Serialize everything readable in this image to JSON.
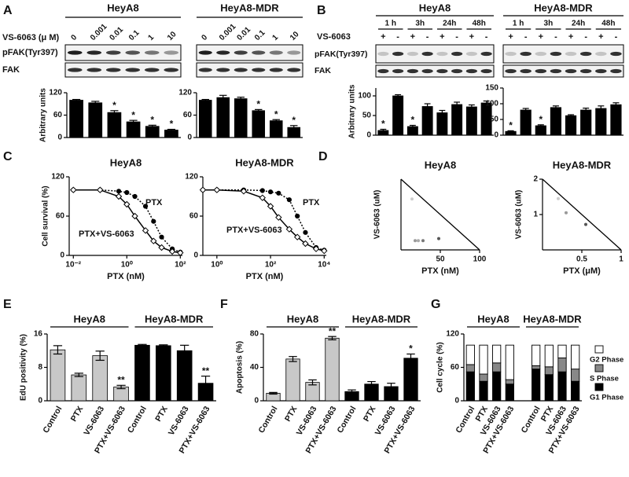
{
  "panel_labels": [
    "A",
    "B",
    "C",
    "D",
    "E",
    "F",
    "G"
  ],
  "blots": {
    "A": {
      "treatment_label": "VS-6063 (μ M)",
      "rows": [
        "pFAK(Tyr397)",
        "FAK"
      ],
      "groups": [
        {
          "title": "HeyA8",
          "doses": [
            "0",
            "0.001",
            "0.01",
            "0.1",
            "1",
            "10"
          ]
        },
        {
          "title": "HeyA8-MDR",
          "doses": [
            "0",
            "0.001",
            "0.01",
            "0.1",
            "1",
            "10"
          ]
        }
      ]
    },
    "B": {
      "treatment_label": "VS-6063",
      "rows": [
        "pFAK(Tyr397)",
        "FAK"
      ],
      "groups": [
        {
          "title": "HeyA8",
          "times": [
            "1 h",
            "3h",
            "24h",
            "48h"
          ],
          "signs": [
            "+",
            "-",
            "+",
            "-",
            "+",
            "-",
            "+",
            "-"
          ]
        },
        {
          "title": "HeyA8-MDR",
          "times": [
            "1 h",
            "3h",
            "24h",
            "48h"
          ],
          "signs": [
            "+",
            "-",
            "+",
            "-",
            "+",
            "-",
            "+",
            "-"
          ]
        }
      ]
    }
  },
  "chart_data": [
    {
      "type": "bar",
      "ylabel": "Arbitrary units",
      "values": [
        100,
        93,
        67,
        42,
        30,
        20
      ],
      "errors": [
        2,
        4,
        5,
        4,
        3,
        2
      ],
      "annotations": [
        null,
        null,
        "*",
        "*",
        "*",
        "*"
      ],
      "color": "#000000",
      "ylim": [
        0,
        120
      ],
      "yticks": [
        0,
        60,
        120
      ]
    },
    {
      "type": "bar",
      "values": [
        100,
        107,
        104,
        72,
        45,
        27
      ],
      "errors": [
        2,
        6,
        4,
        3,
        3,
        5
      ],
      "annotations": [
        null,
        null,
        null,
        "*",
        "*",
        "*"
      ],
      "color": "#000000",
      "ylim": [
        0,
        120
      ],
      "yticks": [
        0,
        60,
        120
      ]
    },
    {
      "type": "bar",
      "ylabel": "Arbitrary units",
      "values": [
        12,
        100,
        22,
        73,
        57,
        78,
        72,
        82
      ],
      "errors": [
        3,
        3,
        3,
        7,
        6,
        6,
        5,
        5
      ],
      "annotations": [
        "*",
        null,
        "*",
        null,
        null,
        null,
        null,
        null
      ],
      "color": "#000000",
      "ylim": [
        0,
        120
      ],
      "yticks": [
        0,
        50,
        100
      ]
    },
    {
      "type": "bar",
      "values": [
        12,
        80,
        30,
        88,
        62,
        80,
        85,
        97
      ],
      "errors": [
        2,
        5,
        3,
        5,
        3,
        6,
        8,
        6
      ],
      "annotations": [
        "*",
        null,
        "*",
        null,
        null,
        null,
        null,
        null
      ],
      "color": "#000000",
      "ylim": [
        0,
        150
      ],
      "yticks": [
        0,
        50,
        100,
        150
      ]
    },
    {
      "type": "line",
      "title": "HeyA8",
      "xlabel": "PTX (nM)",
      "ylabel": "Cell survival (%)",
      "xlog": true,
      "xlim": [
        0.007,
        120
      ],
      "xticks": [
        {
          "value": 0.01,
          "label": "10⁻²"
        },
        {
          "value": 1,
          "label": "10⁰"
        },
        {
          "value": 100,
          "label": "10²"
        }
      ],
      "ylim": [
        0,
        120
      ],
      "yticks": [
        0,
        60,
        120
      ],
      "series": [
        {
          "name": "PTX",
          "color": "#000000",
          "marker": "circle",
          "line_style": "dotted",
          "x": [
            0.01,
            0.1,
            0.5,
            1,
            2,
            5,
            10,
            20,
            50,
            100
          ],
          "values": [
            100,
            100,
            98,
            96,
            90,
            75,
            52,
            28,
            10,
            5
          ]
        },
        {
          "name": "PTX+VS-6063",
          "color": "#000000",
          "marker": "diamond",
          "line_style": "solid",
          "x": [
            0.01,
            0.1,
            0.5,
            1,
            2,
            5,
            10,
            20,
            50,
            100
          ],
          "values": [
            100,
            100,
            90,
            78,
            60,
            38,
            22,
            12,
            6,
            4
          ]
        }
      ]
    },
    {
      "type": "line",
      "title": "HeyA8-MDR",
      "xlabel": "PTX (nM)",
      "xlog": true,
      "xlim": [
        0.3,
        12000
      ],
      "xticks": [
        {
          "value": 1,
          "label": "10⁰"
        },
        {
          "value": 100,
          "label": "10²"
        },
        {
          "value": 10000,
          "label": "10⁴"
        }
      ],
      "ylim": [
        0,
        120
      ],
      "yticks": [
        0,
        60,
        120
      ],
      "series": [
        {
          "name": "PTX",
          "color": "#000000",
          "marker": "circle",
          "line_style": "dotted",
          "x": [
            0.3,
            1,
            10,
            50,
            100,
            200,
            500,
            1000,
            2000,
            5000,
            10000
          ],
          "values": [
            100,
            100,
            100,
            99,
            97,
            95,
            85,
            60,
            35,
            12,
            8
          ]
        },
        {
          "name": "PTX+VS-6063",
          "color": "#000000",
          "marker": "diamond",
          "line_style": "solid",
          "x": [
            0.3,
            1,
            10,
            50,
            100,
            200,
            500,
            1000,
            2000,
            5000,
            10000
          ],
          "values": [
            100,
            100,
            98,
            88,
            75,
            58,
            40,
            28,
            18,
            10,
            7
          ]
        }
      ]
    },
    {
      "type": "scatter",
      "title": "HeyA8",
      "xlabel": "PTX (nM)",
      "ylabel": "VS-6063 (uM)",
      "x": [
        14,
        18,
        22,
        28,
        48
      ],
      "values": [
        7.2,
        1.3,
        1.3,
        1.3,
        1.6
      ],
      "colors": [
        "#cccccc",
        "#999999",
        "#aaaaaa",
        "#777777",
        "#555555"
      ],
      "line": {
        "x": [
          0,
          100
        ],
        "values": [
          10,
          0
        ]
      },
      "xlim": [
        0,
        100
      ],
      "xticks": [
        50,
        100
      ],
      "ylim": [
        0,
        10
      ]
    },
    {
      "type": "scatter",
      "title": "HeyA8-MDR",
      "xlabel": "PTX (μM)",
      "ylabel": "VS-6063 (uM)",
      "x": [
        0.2,
        0.3,
        0.55
      ],
      "values": [
        1.45,
        1.05,
        0.72
      ],
      "colors": [
        "#cccccc",
        "#999999",
        "#555555"
      ],
      "line": {
        "x": [
          0,
          1
        ],
        "values": [
          2,
          0
        ]
      },
      "xlim": [
        0,
        1
      ],
      "xticks": [
        0.5,
        1
      ],
      "ylim": [
        0,
        2
      ],
      "yticks": [
        1,
        2
      ]
    },
    {
      "type": "bar",
      "ylabel": "EdU positivity (%)",
      "group_titles": [
        "HeyA8",
        "HeyA8-MDR"
      ],
      "categories": [
        "Control",
        "PTX",
        "VS-6063",
        "PTX+VS-6063",
        "Control",
        "PTX",
        "VS-6063",
        "PTX+VS-6063"
      ],
      "values": [
        12.2,
        6.2,
        10.8,
        3.3,
        13.3,
        13.2,
        12.0,
        4.2
      ],
      "errors": [
        1.0,
        0.4,
        1.1,
        0.4,
        0.2,
        0.2,
        1.3,
        1.7
      ],
      "colors": [
        "#c8c8c8",
        "#c8c8c8",
        "#c8c8c8",
        "#c8c8c8",
        "#000000",
        "#000000",
        "#000000",
        "#000000"
      ],
      "annotations": [
        null,
        null,
        null,
        "**",
        null,
        null,
        null,
        "**"
      ],
      "ylim": [
        0,
        16
      ],
      "yticks": [
        0,
        8,
        16
      ]
    },
    {
      "type": "bar",
      "ylabel": "Apoptosis (%)",
      "group_titles": [
        "HeyA8",
        "HeyA8-MDR"
      ],
      "categories": [
        "Control",
        "PTX",
        "VS-6063",
        "PTX+VS-6063",
        "Control",
        "PTX",
        "VS-6063",
        "PTX+VS-6063"
      ],
      "values": [
        9,
        50,
        22,
        75,
        11,
        20,
        17,
        51
      ],
      "errors": [
        1,
        3,
        3,
        2,
        2,
        3,
        4,
        5
      ],
      "colors": [
        "#c8c8c8",
        "#c8c8c8",
        "#c8c8c8",
        "#c8c8c8",
        "#000000",
        "#000000",
        "#000000",
        "#000000"
      ],
      "annotations": [
        null,
        null,
        null,
        "**",
        null,
        null,
        null,
        "*"
      ],
      "ylim": [
        0,
        80
      ],
      "yticks": [
        0,
        40,
        80
      ]
    },
    {
      "type": "stacked_bar",
      "ylabel": "Cell cycle (%)",
      "group_titles": [
        "HeyA8",
        "HeyA8-MDR"
      ],
      "categories": [
        "Control",
        "PTX",
        "VS-6063",
        "PTX+VS-6063",
        "Control",
        "PTX",
        "VS-6063",
        "PTX+VS-6063"
      ],
      "series": [
        {
          "name": "G1 Phase",
          "color": "#000000",
          "values": [
            52,
            35,
            52,
            30,
            57,
            47,
            52,
            35
          ]
        },
        {
          "name": "S Phase",
          "color": "#888888",
          "values": [
            13,
            13,
            16,
            8,
            6,
            14,
            25,
            22
          ]
        },
        {
          "name": "G2 Phase",
          "color": "#ffffff",
          "values": [
            35,
            52,
            32,
            62,
            37,
            39,
            23,
            43
          ]
        }
      ],
      "legend": "right",
      "ylim": [
        0,
        120
      ],
      "yticks": [
        0,
        60,
        120
      ]
    }
  ]
}
